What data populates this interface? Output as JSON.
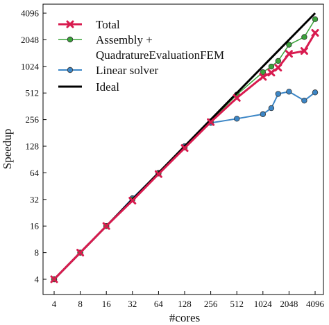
{
  "chart_data": {
    "type": "line",
    "xlabel": "#cores",
    "ylabel": "Speedup",
    "xscale": "log2",
    "yscale": "log2",
    "xlim": [
      4,
      4096
    ],
    "ylim": [
      4,
      4096
    ],
    "x_ticks": [
      4,
      8,
      16,
      32,
      64,
      128,
      256,
      512,
      1024,
      2048,
      4096
    ],
    "y_ticks": [
      4,
      8,
      16,
      32,
      64,
      128,
      256,
      512,
      1024,
      2048,
      4096
    ],
    "grid": false,
    "legend_position": "top-left",
    "series": [
      {
        "name": "Total",
        "color": "#d81b4f",
        "marker": "x",
        "x": [
          4,
          8,
          16,
          32,
          64,
          128,
          256,
          512,
          1024,
          1280,
          1536,
          2048,
          3072,
          4096
        ],
        "y": [
          4,
          8,
          16,
          31,
          62,
          122,
          240,
          450,
          780,
          870,
          990,
          1420,
          1530,
          2450
        ]
      },
      {
        "name": "Assembly +\nQuadratureEvaluationFEM",
        "color": "#3aa33a",
        "marker": "circle",
        "x": [
          4,
          8,
          16,
          32,
          64,
          128,
          256,
          512,
          1024,
          1280,
          1536,
          2048,
          3072,
          4096
        ],
        "y": [
          4,
          8,
          16,
          32,
          63,
          124,
          245,
          490,
          880,
          1020,
          1180,
          1800,
          2200,
          3500
        ]
      },
      {
        "name": "Linear solver",
        "color": "#3c86c6",
        "marker": "circle",
        "x": [
          4,
          8,
          16,
          32,
          64,
          128,
          256,
          512,
          1024,
          1280,
          1536,
          2048,
          3072,
          4096
        ],
        "y": [
          4,
          8,
          16,
          33,
          64,
          128,
          235,
          262,
          295,
          345,
          500,
          530,
          420,
          520
        ]
      },
      {
        "name": "Ideal",
        "color": "#000000",
        "marker": "none",
        "x": [
          4,
          4096
        ],
        "y": [
          4,
          4096
        ]
      }
    ]
  }
}
